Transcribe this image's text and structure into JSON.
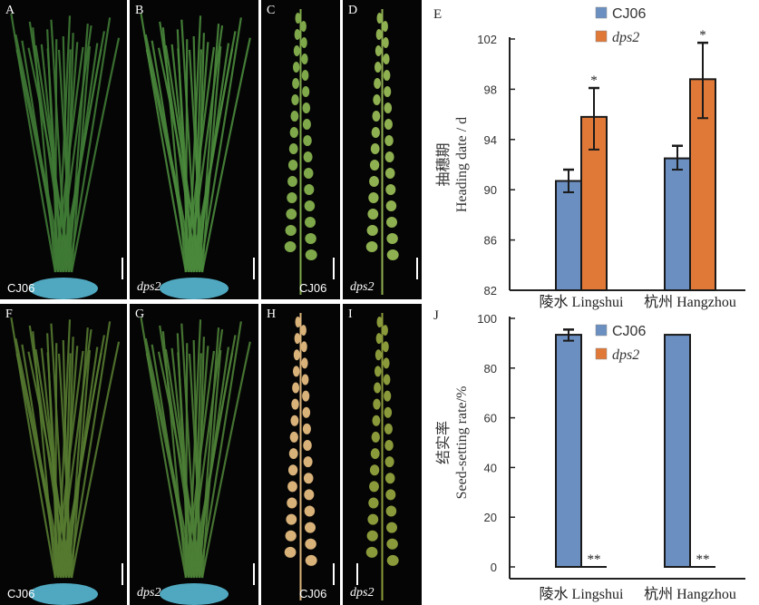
{
  "photos": [
    {
      "letter": "A",
      "caption": "CJ06",
      "italic": false,
      "kind": "plant",
      "color": "#3f7a35"
    },
    {
      "letter": "B",
      "caption": "dps2",
      "italic": true,
      "kind": "plant",
      "color": "#4a8a3c"
    },
    {
      "letter": "C",
      "caption": "CJ06",
      "italic": false,
      "kind": "panicle",
      "color": "#7fa84a"
    },
    {
      "letter": "D",
      "caption": "dps2",
      "italic": true,
      "kind": "panicle",
      "color": "#8fb050"
    },
    {
      "letter": "F",
      "caption": "CJ06",
      "italic": false,
      "kind": "plant",
      "color": "#557a30"
    },
    {
      "letter": "G",
      "caption": "dps2",
      "italic": true,
      "kind": "plant",
      "color": "#4d7f36"
    },
    {
      "letter": "H",
      "caption": "CJ06",
      "italic": false,
      "kind": "panicle",
      "color": "#d9b27a"
    },
    {
      "letter": "I",
      "caption": "dps2",
      "italic": true,
      "kind": "panicle",
      "color": "#8a9a3a"
    }
  ],
  "colors": {
    "CJ06": "#6a8fc0",
    "dps2": "#e07838"
  },
  "chart_data": [
    {
      "panel": "E",
      "type": "bar",
      "ylabel_cn": "抽穗期",
      "ylabel": "Heading date  / d",
      "categories": [
        "陵水 Lingshui",
        "杭州 Hangzhou"
      ],
      "ylim": [
        82,
        102
      ],
      "yticks": [
        82,
        86,
        90,
        94,
        98,
        102
      ],
      "legend": "top-center",
      "series": [
        {
          "name": "CJ06",
          "values": [
            90.7,
            92.5
          ],
          "err_low": [
            89.8,
            91.6
          ],
          "err_high": [
            91.6,
            93.5
          ],
          "marks": [
            "",
            ""
          ]
        },
        {
          "name": "dps2",
          "values": [
            95.8,
            98.8
          ],
          "err_low": [
            93.2,
            95.7
          ],
          "err_high": [
            98.1,
            101.7
          ],
          "marks": [
            "*",
            "*"
          ]
        }
      ]
    },
    {
      "panel": "J",
      "type": "bar",
      "ylabel_cn": "结实率",
      "ylabel": "Seed-setting rate/%",
      "categories": [
        "陵水 Lingshui",
        "杭州 Hangzhou"
      ],
      "ylim": [
        0,
        100
      ],
      "yticks": [
        0,
        20,
        40,
        60,
        80,
        100
      ],
      "legend": "top-center",
      "series": [
        {
          "name": "CJ06",
          "values": [
            93.4,
            93.4
          ],
          "err_low": [
            91,
            null
          ],
          "err_high": [
            95.5,
            null
          ],
          "marks": [
            "",
            ""
          ]
        },
        {
          "name": "dps2",
          "values": [
            0,
            0
          ],
          "err_low": [
            null,
            null
          ],
          "err_high": [
            null,
            null
          ],
          "marks": [
            "**",
            "**"
          ]
        }
      ]
    }
  ]
}
